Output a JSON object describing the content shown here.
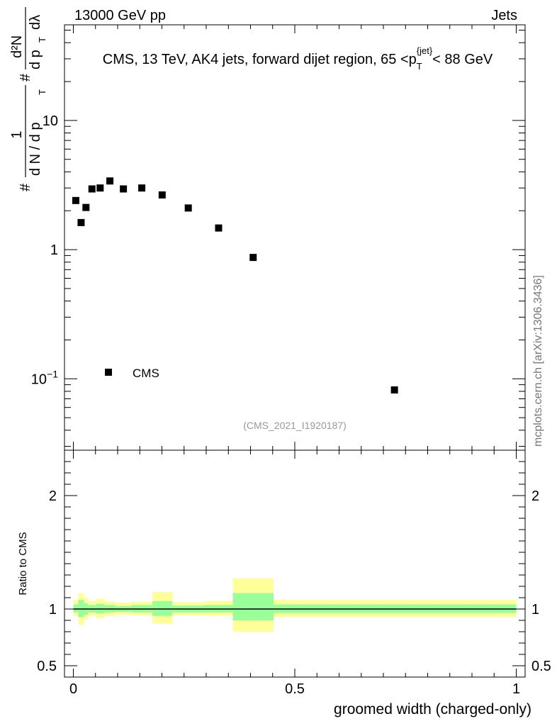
{
  "header": {
    "left": "13000 GeV pp",
    "right": "Jets"
  },
  "watermark": "mcplots.cern.ch [arXiv:1306.3436]",
  "analysis_id": "(CMS_2021_I1920187)",
  "colors": {
    "marker": "#000000",
    "band_outer": "#ffff99",
    "band_inner": "#99ff99",
    "analysis_id": "#999999"
  },
  "chart_data": [
    {
      "type": "scatter",
      "title": "CMS, 13 TeV, AK4 jets, forward dijet region, 65 <p_T^{jet}< 88 GeV",
      "ylabel_parts": {
        "hash1": "#",
        "one": "1",
        "denominator": "d N / d p",
        "T_sub": "T",
        "hash2": "#",
        "numerator": "d²N",
        "denom2": "d p",
        "denom2_sub": "T",
        "lambda": "dλ"
      },
      "yscale": "log",
      "ylim": [
        0.028,
        55
      ],
      "xlim": [
        -0.02,
        1.02
      ],
      "y_tick_labels": [
        {
          "value": 10,
          "label": "10"
        },
        {
          "value": 1,
          "label": "1"
        },
        {
          "value": 0.1,
          "label": "10",
          "sup": "−1"
        }
      ],
      "legend": {
        "label": "CMS",
        "position": "lower-left"
      },
      "series": [
        {
          "name": "CMS",
          "marker": "square",
          "x": [
            0.0055,
            0.0175,
            0.0285,
            0.042,
            0.0605,
            0.0825,
            0.113,
            0.1545,
            0.2005,
            0.2595,
            0.328,
            0.406,
            0.725
          ],
          "y": [
            2.4,
            1.62,
            2.12,
            2.95,
            3.0,
            3.4,
            2.95,
            3.0,
            2.65,
            2.1,
            1.47,
            0.87,
            0.082
          ]
        }
      ]
    },
    {
      "type": "area",
      "ylabel": "Ratio to CMS",
      "xlabel": "groomed width (charged-only)",
      "ylim": [
        0.4,
        2.4
      ],
      "xlim": [
        -0.02,
        1.02
      ],
      "x_tick_labels": [
        {
          "value": 0,
          "label": "0"
        },
        {
          "value": 0.5,
          "label": "0.5"
        },
        {
          "value": 1,
          "label": "1"
        }
      ],
      "y_tick_labels": [
        {
          "value": 0.5,
          "label": "0.5"
        },
        {
          "value": 1,
          "label": "1"
        },
        {
          "value": 2,
          "label": "2"
        }
      ],
      "reference_line": 1,
      "bins": [
        {
          "x0": 0.0,
          "x1": 0.011,
          "out": [
            0.94,
            1.08
          ],
          "in": [
            0.97,
            1.04
          ]
        },
        {
          "x0": 0.011,
          "x1": 0.024,
          "out": [
            0.86,
            1.14
          ],
          "in": [
            0.93,
            1.08
          ]
        },
        {
          "x0": 0.024,
          "x1": 0.033,
          "out": [
            0.91,
            1.1
          ],
          "in": [
            0.95,
            1.05
          ]
        },
        {
          "x0": 0.033,
          "x1": 0.051,
          "out": [
            0.94,
            1.07
          ],
          "in": [
            0.97,
            1.035
          ]
        },
        {
          "x0": 0.051,
          "x1": 0.07,
          "out": [
            0.92,
            1.09
          ],
          "in": [
            0.96,
            1.045
          ]
        },
        {
          "x0": 0.07,
          "x1": 0.095,
          "out": [
            0.94,
            1.065
          ],
          "in": [
            0.97,
            1.035
          ]
        },
        {
          "x0": 0.095,
          "x1": 0.131,
          "out": [
            0.95,
            1.055
          ],
          "in": [
            0.975,
            1.025
          ]
        },
        {
          "x0": 0.131,
          "x1": 0.178,
          "out": [
            0.945,
            1.065
          ],
          "in": [
            0.97,
            1.035
          ]
        },
        {
          "x0": 0.178,
          "x1": 0.223,
          "out": [
            0.87,
            1.15
          ],
          "in": [
            0.94,
            1.07
          ]
        },
        {
          "x0": 0.223,
          "x1": 0.296,
          "out": [
            0.945,
            1.06
          ],
          "in": [
            0.97,
            1.03
          ]
        },
        {
          "x0": 0.296,
          "x1": 0.36,
          "out": [
            0.94,
            1.07
          ],
          "in": [
            0.97,
            1.035
          ]
        },
        {
          "x0": 0.36,
          "x1": 0.452,
          "out": [
            0.8,
            1.27
          ],
          "in": [
            0.9,
            1.14
          ]
        },
        {
          "x0": 0.452,
          "x1": 1.0,
          "out": [
            0.93,
            1.08
          ],
          "in": [
            0.965,
            1.04
          ]
        }
      ]
    }
  ]
}
